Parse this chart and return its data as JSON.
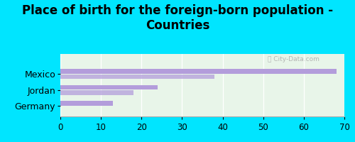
{
  "title": "Place of birth for the foreign-born population -\nCountries",
  "categories": [
    "Germany",
    "Jordan",
    "Mexico"
  ],
  "values_main": [
    13,
    24,
    68
  ],
  "values_secondary": [
    0,
    18,
    38
  ],
  "bar_color": "#b39ddb",
  "background_color": "#00e5ff",
  "plot_bg_color": "#e8f5e9",
  "xlim": [
    0,
    70
  ],
  "xticks": [
    0,
    10,
    20,
    30,
    40,
    50,
    60,
    70
  ],
  "bar_height": 0.28,
  "bar_spacing": 0.06,
  "title_fontsize": 12,
  "tick_fontsize": 8.5,
  "label_fontsize": 9
}
